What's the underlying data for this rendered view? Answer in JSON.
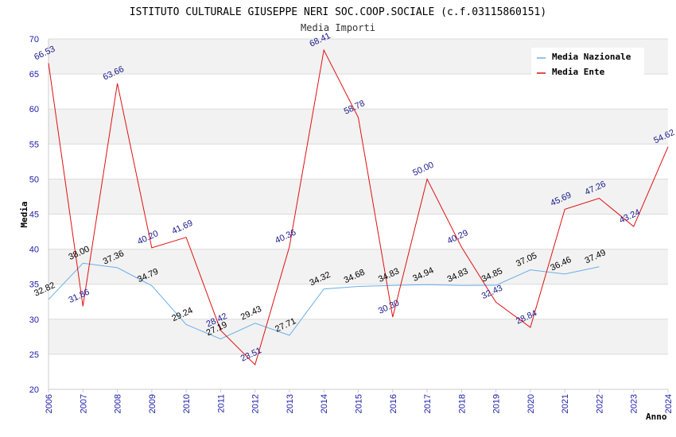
{
  "chart_data": {
    "type": "line",
    "title": "ISTITUTO CULTURALE GIUSEPPE NERI SOC.COOP.SOCIALE (c.f.03115860151)",
    "subtitle": "Media Importi",
    "xlabel": "Anno",
    "ylabel": "Media",
    "x": [
      "2006",
      "2007",
      "2008",
      "2009",
      "2010",
      "2011",
      "2012",
      "2013",
      "2014",
      "2015",
      "2016",
      "2017",
      "2018",
      "2019",
      "2020",
      "2021",
      "2022",
      "2023",
      "2024"
    ],
    "ylim": [
      20,
      70
    ],
    "yticks": [
      20,
      25,
      30,
      35,
      40,
      45,
      50,
      55,
      60,
      65,
      70
    ],
    "grid": true,
    "legend_position": "top-right",
    "series": [
      {
        "name": "Media Nazionale",
        "color": "#6aaee8",
        "label_color": "#000000",
        "values": [
          32.82,
          38.0,
          37.36,
          34.79,
          29.24,
          27.19,
          29.43,
          27.71,
          34.32,
          34.68,
          34.83,
          34.94,
          34.83,
          34.85,
          37.05,
          36.46,
          37.49,
          null,
          null
        ],
        "labels": [
          "32.82",
          "38.00",
          "37.36",
          "34.79",
          "29.24",
          "27.19",
          "29.43",
          "27.71",
          "34.32",
          "34.68",
          "34.83",
          "34.94",
          "34.83",
          "34.85",
          "37.05",
          "36.46",
          "37.49",
          "",
          ""
        ]
      },
      {
        "name": "Media Ente",
        "color": "#e01010",
        "label_color": "#1a1a8c",
        "values": [
          66.53,
          31.86,
          63.66,
          40.2,
          41.69,
          28.42,
          23.51,
          40.36,
          68.41,
          58.78,
          30.3,
          50.0,
          40.29,
          32.43,
          28.84,
          45.69,
          47.26,
          43.24,
          54.62
        ],
        "labels": [
          "66.53",
          "31.86",
          "63.66",
          "40.20",
          "41.69",
          "28.42",
          "23.51",
          "40.36",
          "68.41",
          "58.78",
          "30.30",
          "50.00",
          "40.29",
          "32.43",
          "28.84",
          "45.69",
          "47.26",
          "43.24",
          "54.62"
        ]
      }
    ]
  }
}
